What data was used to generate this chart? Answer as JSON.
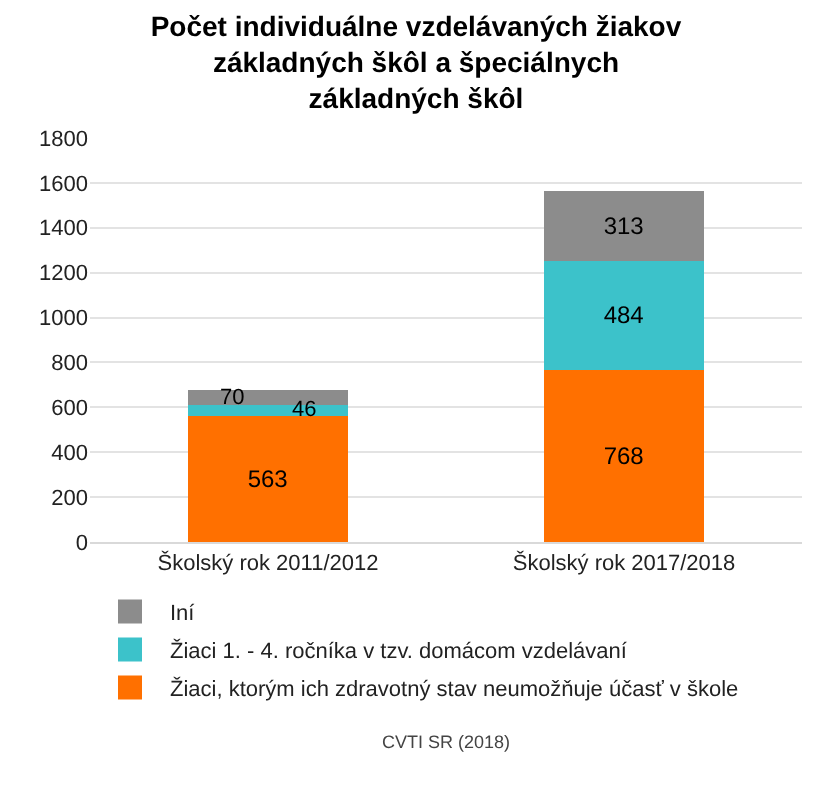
{
  "chart_data": {
    "type": "bar",
    "stacked": true,
    "title": "Počet individuálne vzdelávaných žiakov\nzákladných škôl a špeciálnych\nzákladných škôl",
    "categories": [
      "Školský rok 2011/2012",
      "Školský rok 2017/2018"
    ],
    "series": [
      {
        "name": "Žiaci, ktorým ich zdravotný stav neumožňuje účasť v škole",
        "color": "#ff7000",
        "values": [
          563,
          768
        ]
      },
      {
        "name": "Žiaci 1. - 4. ročníka v tzv. domácom vzdelávaní",
        "color": "#3cc2ca",
        "values": [
          46,
          484
        ]
      },
      {
        "name": "Iní",
        "color": "#8c8c8c",
        "values": [
          70,
          313
        ]
      }
    ],
    "ylim": [
      0,
      1800
    ],
    "yticks": [
      0,
      200,
      400,
      600,
      800,
      1000,
      1200,
      1400,
      1600,
      1800
    ],
    "grid": "y",
    "legend": "bottom",
    "data_labels": true,
    "annotations": [
      "CVTI SR (2018)"
    ]
  }
}
